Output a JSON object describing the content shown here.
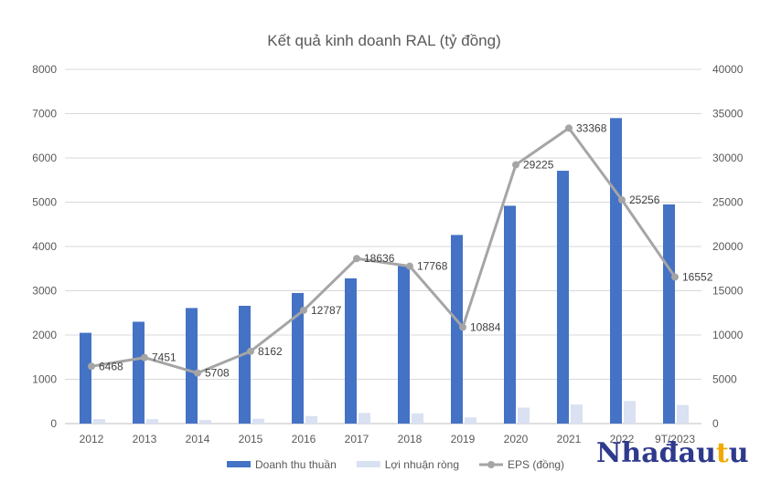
{
  "chart_data": {
    "type": "bar",
    "title": "Kết quả kinh doanh RAL (tỷ đồng)",
    "categories": [
      "2012",
      "2013",
      "2014",
      "2015",
      "2016",
      "2017",
      "2018",
      "2019",
      "2020",
      "2021",
      "2022",
      "9T/2023"
    ],
    "series": [
      {
        "name": "Doanh thu thuần",
        "type": "bar",
        "axis": "left",
        "color": "#4472C4",
        "values": [
          2050,
          2300,
          2610,
          2660,
          2950,
          3280,
          3570,
          4260,
          4920,
          5710,
          6900,
          4950
        ]
      },
      {
        "name": "Lợi nhuận ròng",
        "type": "bar",
        "axis": "left",
        "color": "#D9E1F2",
        "values": [
          100,
          100,
          80,
          110,
          170,
          240,
          230,
          140,
          360,
          430,
          510,
          420
        ]
      },
      {
        "name": "EPS (đồng)",
        "type": "line",
        "axis": "right",
        "color": "#A5A5A5",
        "values": [
          6468,
          7451,
          5708,
          8162,
          12787,
          18636,
          17768,
          10884,
          29225,
          33368,
          25256,
          16552
        ],
        "labels": [
          "6468",
          "7451",
          "5708",
          "8162",
          "12787",
          "18636",
          "17768",
          "10884",
          "29225",
          "33368",
          "25256",
          "16552"
        ]
      }
    ],
    "y_left": {
      "min": 0,
      "max": 8000,
      "ticks": [
        "0",
        "1000",
        "2000",
        "3000",
        "4000",
        "5000",
        "6000",
        "7000",
        "8000"
      ]
    },
    "y_right": {
      "min": 0,
      "max": 40000,
      "ticks": [
        "0",
        "5000",
        "10000",
        "15000",
        "20000",
        "25000",
        "30000",
        "35000",
        "40000"
      ]
    },
    "grid": true,
    "legend_position": "bottom"
  },
  "watermark": "Nhadautu"
}
